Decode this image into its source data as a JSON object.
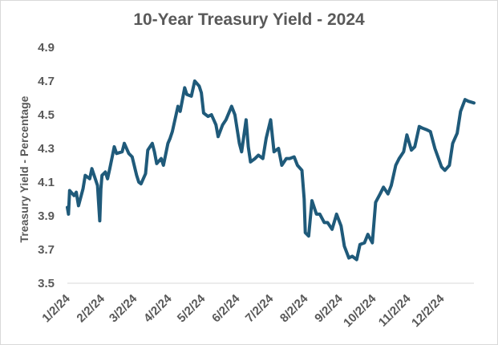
{
  "chart_data": {
    "type": "line",
    "title": "10-Year Treasury Yield - 2024",
    "xlabel": "",
    "ylabel": "Treasury Yield - Percentage",
    "ylim": [
      3.5,
      4.9
    ],
    "yticks": [
      "3.5",
      "3.7",
      "3.9",
      "4.1",
      "4.3",
      "4.5",
      "4.7",
      "4.9"
    ],
    "xticks": [
      "1/2/24",
      "2/2/24",
      "3/2/24",
      "4/2/24",
      "5/2/24",
      "6/2/24",
      "7/2/24",
      "8/2/24",
      "9/2/24",
      "10/2/24",
      "11/2/24",
      "12/2/24"
    ],
    "grid": false,
    "legend": "none",
    "colors": {
      "line": "#1F5A7A",
      "axis": "#d9d9d9",
      "text": "#595959"
    },
    "series": [
      {
        "x": [
          "1/2/24",
          "1/3/24",
          "1/4/24",
          "1/8/24",
          "1/10/24",
          "1/12/24",
          "1/16/24",
          "1/18/24",
          "1/22/24",
          "1/24/24",
          "1/26/24",
          "1/29/24",
          "1/31/24",
          "2/1/24",
          "2/2/24",
          "2/5/24",
          "2/7/24",
          "2/9/24",
          "2/13/24",
          "2/15/24",
          "2/20/24",
          "2/22/24",
          "2/26/24",
          "2/29/24",
          "3/4/24",
          "3/6/24",
          "3/8/24",
          "3/12/24",
          "3/14/24",
          "3/18/24",
          "3/20/24",
          "3/22/24",
          "3/26/24",
          "3/28/24",
          "4/1/24",
          "4/3/24",
          "4/5/24",
          "4/10/24",
          "4/12/24",
          "4/16/24",
          "4/18/24",
          "4/22/24",
          "4/25/24",
          "4/29/24",
          "5/1/24",
          "5/3/24",
          "5/7/24",
          "5/10/24",
          "5/14/24",
          "5/16/24",
          "5/20/24",
          "5/23/24",
          "5/28/24",
          "5/31/24",
          "6/4/24",
          "6/6/24",
          "6/10/24",
          "6/12/24",
          "6/14/24",
          "6/18/24",
          "6/21/24",
          "6/25/24",
          "6/28/24",
          "7/2/24",
          "7/5/24",
          "7/9/24",
          "7/12/24",
          "7/16/24",
          "7/19/24",
          "7/23/24",
          "7/26/24",
          "7/30/24",
          "8/1/24",
          "8/2/24",
          "8/5/24",
          "8/8/24",
          "8/12/24",
          "8/15/24",
          "8/19/24",
          "8/22/24",
          "8/26/24",
          "8/30/24",
          "9/3/24",
          "9/6/24",
          "9/10/24",
          "9/13/24",
          "9/17/24",
          "9/20/24",
          "9/24/24",
          "9/27/24",
          "10/1/24",
          "10/4/24",
          "10/8/24",
          "10/11/24",
          "10/15/24",
          "10/18/24",
          "10/22/24",
          "10/25/24",
          "10/29/24",
          "11/1/24",
          "11/5/24",
          "11/8/24",
          "11/12/24",
          "11/15/24",
          "11/19/24",
          "11/22/24",
          "11/26/24",
          "12/2/24",
          "12/5/24",
          "12/9/24",
          "12/12/24",
          "12/16/24",
          "12/19/24",
          "12/23/24",
          "12/26/24",
          "12/31/24"
        ],
        "values": [
          3.95,
          3.91,
          4.05,
          4.02,
          4.04,
          3.96,
          4.06,
          4.14,
          4.12,
          4.18,
          4.14,
          4.08,
          3.87,
          4.06,
          4.14,
          4.16,
          4.12,
          4.18,
          4.31,
          4.27,
          4.28,
          4.33,
          4.27,
          4.25,
          4.14,
          4.1,
          4.09,
          4.15,
          4.29,
          4.33,
          4.28,
          4.21,
          4.24,
          4.2,
          4.33,
          4.36,
          4.4,
          4.55,
          4.52,
          4.66,
          4.62,
          4.61,
          4.7,
          4.67,
          4.63,
          4.51,
          4.49,
          4.5,
          4.44,
          4.37,
          4.44,
          4.47,
          4.55,
          4.5,
          4.33,
          4.28,
          4.47,
          4.31,
          4.22,
          4.24,
          4.26,
          4.24,
          4.36,
          4.47,
          4.28,
          4.3,
          4.2,
          4.24,
          4.24,
          4.25,
          4.2,
          4.17,
          4.0,
          3.8,
          3.78,
          3.99,
          3.91,
          3.91,
          3.86,
          3.86,
          3.82,
          3.91,
          3.84,
          3.72,
          3.65,
          3.66,
          3.64,
          3.73,
          3.74,
          3.79,
          3.74,
          3.98,
          4.03,
          4.07,
          4.03,
          4.08,
          4.2,
          4.24,
          4.28,
          4.38,
          4.29,
          4.31,
          4.43,
          4.42,
          4.41,
          4.4,
          4.3,
          4.19,
          4.17,
          4.2,
          4.33,
          4.39,
          4.52,
          4.59,
          4.58,
          4.57
        ]
      }
    ]
  }
}
